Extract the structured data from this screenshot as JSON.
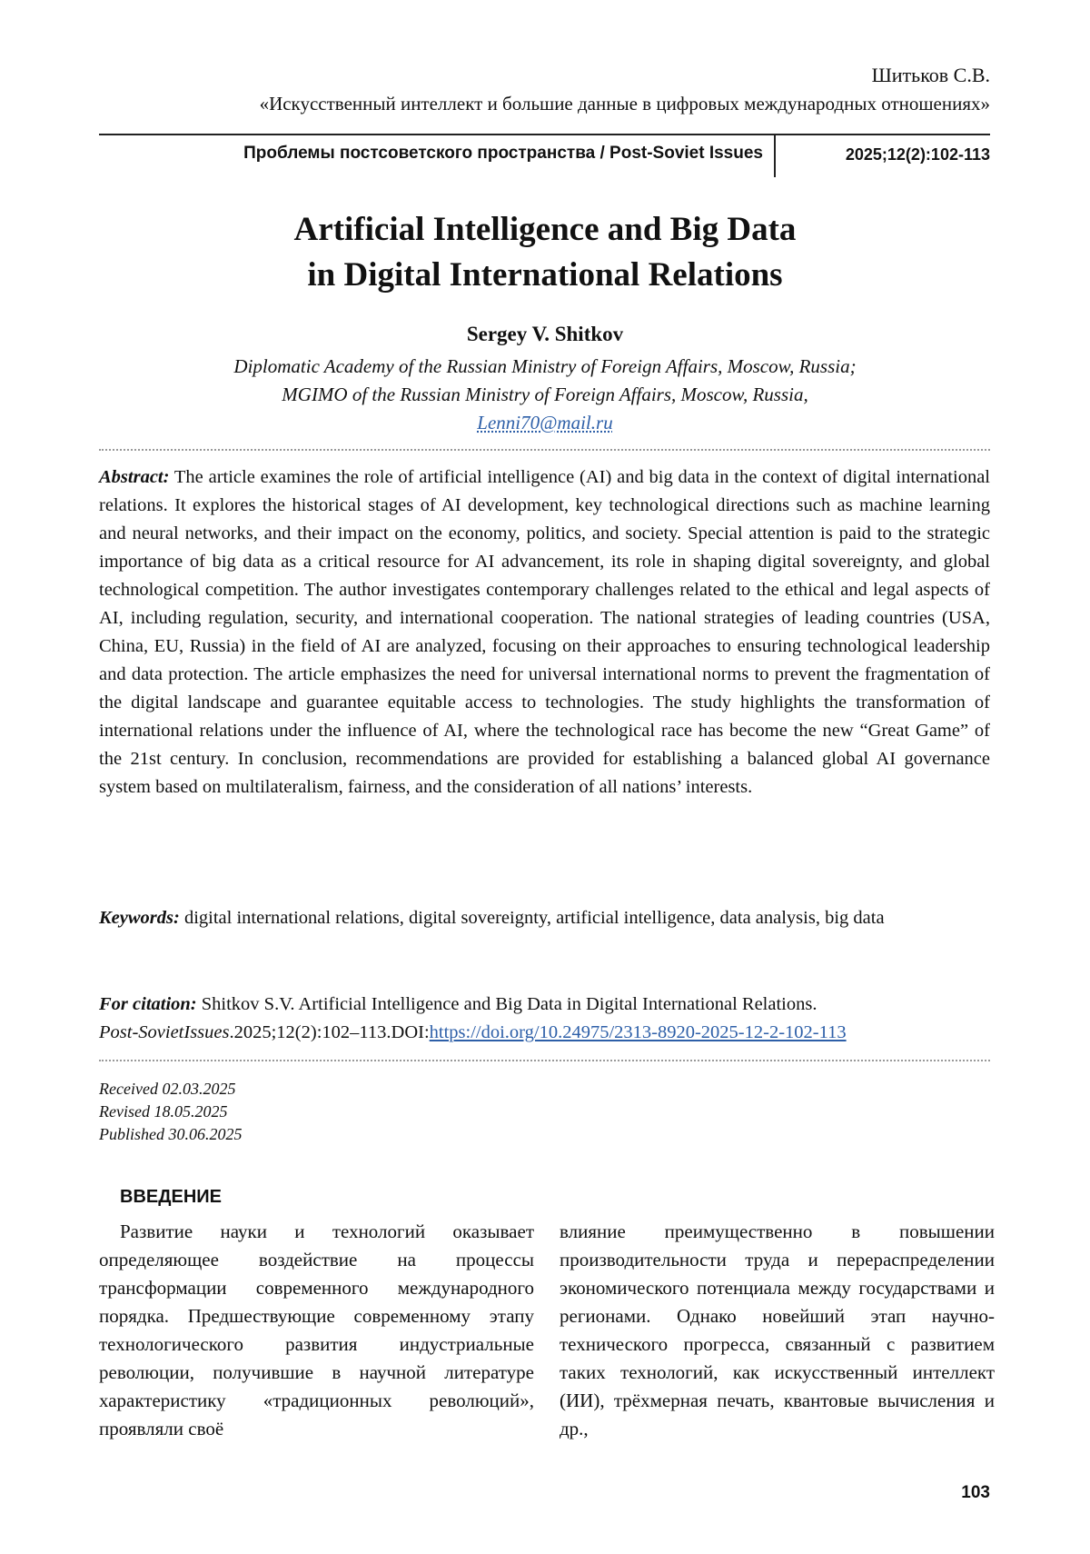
{
  "running_header": {
    "author": "Шитьков С.В.",
    "title": "«Искусственный интеллект и большие данные в цифровых международных отношениях»",
    "journal": "Проблемы постсоветского пространства / Post-Soviet Issues",
    "issue": "2025;12(2):102-113"
  },
  "article": {
    "title_line1": "Artificial Intelligence and Big Data",
    "title_line2": "in Digital International Relations",
    "author": "Sergey V. Shitkov",
    "affiliation1": "Diplomatic Academy of the Russian Ministry of Foreign Affairs, Moscow, Russia;",
    "affiliation2": "MGIMO of the Russian Ministry of Foreign Affairs, Moscow, Russia,",
    "email": "Lenni70@mail.ru"
  },
  "abstract": {
    "label": "Abstract:",
    "text": "The article examines the role of artificial intelligence (AI) and big data in the context of digital international relations. It explores the historical stages of AI development, key technological directions such as machine learning and neural networks, and their impact on the economy, politics, and society. Special attention is paid to the strategic importance of big data as a critical resource for AI advancement, its role in shaping digital sovereignty, and global technological competition. The author investigates contemporary challenges related to the ethical and legal aspects of AI, including regulation, security, and international cooperation. The national strategies of leading countries (USA, China, EU, Russia) in the field of AI are analyzed, focusing on their approaches to ensuring technological leadership and data protection. The article emphasizes the need for universal international norms to prevent the fragmentation of the digital landscape and guarantee equitable access to technologies. The study highlights the transformation of international relations under the influence of AI, where the technological race has become the new “Great Game” of the 21st century. In conclusion, recommendations are provided for establishing a balanced global AI governance system based on multilateralism, fairness, and the consideration of all nations’ interests."
  },
  "keywords": {
    "label": "Keywords:",
    "text": "digital international relations, digital sovereignty, artificial intelligence, data analysis, big data"
  },
  "citation": {
    "label": "For citation:",
    "text": "Shitkov S.V. Artificial Intelligence and Big Data in Digital International Relations.",
    "journal": "Post-SovietIssues",
    "details": ".2025;12(2):102–113.DOI:",
    "doi": "https://doi.org/10.24975/2313-8920-2025-12-2-102-113"
  },
  "dates": {
    "received": "Received 02.03.2025",
    "revised": "Revised 18.05.2025",
    "published": "Published 30.06.2025"
  },
  "body": {
    "heading": "ВВЕДЕНИЕ",
    "col1": "Развитие науки и технологий оказывает определяющее воздействие на процессы трансформации современного международного порядка. Предшествующие современному этапу технологического развития индустриальные революции, получившие в научной литературе характеристику «традиционных революций», проявляли своё",
    "col2": "влияние преимущественно в повышении производительности труда и перераспределении экономического потенциала между государствами и регионами. Однако новейший этап научно-технического прогресса, связанный с развитием таких технологий, как искусственный интеллект (ИИ), трёхмерная печать, квантовые вычисления и др.,"
  },
  "page_number": "103",
  "colors": {
    "link": "#2d5fa8",
    "text": "#111111"
  }
}
